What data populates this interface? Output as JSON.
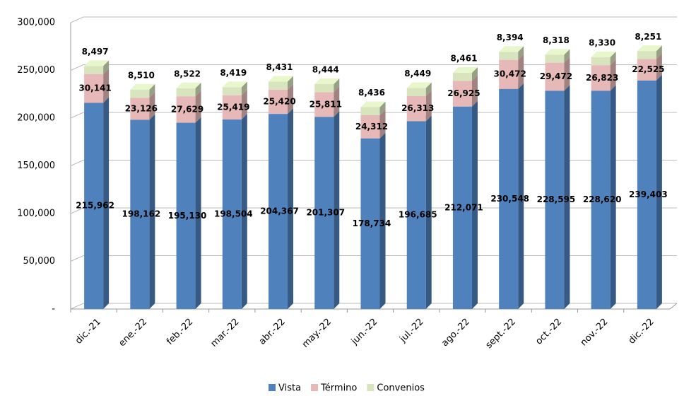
{
  "chart_data": {
    "type": "bar3d_stacked",
    "categories": [
      "dic.-21",
      "ene.-22",
      "feb.-22",
      "mar.-22",
      "abr.-22",
      "may.-22",
      "jun.-22",
      "jul.-22",
      "ago.-22",
      "sept.-22",
      "oct.-22",
      "nov.-22",
      "dic.-22"
    ],
    "series": [
      {
        "name": "Vista",
        "color": "#4f81bd",
        "values": [
          215962,
          198162,
          195130,
          198504,
          204367,
          201307,
          178734,
          196685,
          212071,
          230548,
          228595,
          228620,
          239403
        ],
        "value_labels": [
          "215,962",
          "198,162",
          "195,130",
          "198,504",
          "204,367",
          "201,307",
          "178,734",
          "196,685",
          "212,071",
          "230,548",
          "228,595",
          "228,620",
          "239,403"
        ]
      },
      {
        "name": "Término",
        "color": "#e6b9b8",
        "values": [
          30141,
          23126,
          27629,
          25419,
          25420,
          25811,
          24312,
          26313,
          26925,
          30472,
          29472,
          26823,
          22525
        ],
        "value_labels": [
          "30,141",
          "23,126",
          "27,629",
          "25,419",
          "25,420",
          "25,811",
          "24,312",
          "26,313",
          "26,925",
          "30,472",
          "29,472",
          "26,823",
          "22,525"
        ]
      },
      {
        "name": "Convenios",
        "color": "#d7e4bd",
        "values": [
          8497,
          8510,
          8522,
          8419,
          8431,
          8444,
          8436,
          8449,
          8461,
          8394,
          8318,
          8330,
          8251
        ],
        "value_labels": [
          "8,497",
          "8,510",
          "8,522",
          "8,419",
          "8,431",
          "8,444",
          "8,436",
          "8,449",
          "8,461",
          "8,394",
          "8,318",
          "8,330",
          "8,251"
        ]
      }
    ],
    "ylim": [
      0,
      300000
    ],
    "yticks": [
      {
        "value": 0,
        "label": "-"
      },
      {
        "value": 50000,
        "label": "50,000"
      },
      {
        "value": 100000,
        "label": "100,000"
      },
      {
        "value": 150000,
        "label": "150,000"
      },
      {
        "value": 200000,
        "label": "200,000"
      },
      {
        "value": 250000,
        "label": "250,000"
      },
      {
        "value": 300000,
        "label": "300,000"
      }
    ],
    "grid": true,
    "legend": "bottom"
  }
}
